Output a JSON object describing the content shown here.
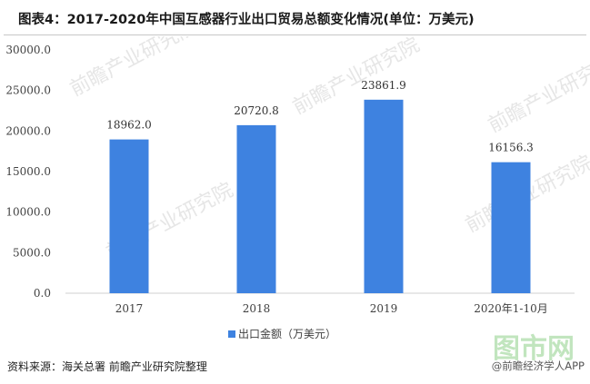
{
  "page": {
    "title": "图表4：2017-2020年中国互感器行业出口贸易总额变化情况(单位：万美元)",
    "source": "资料来源：海关总署 前瞻产业研究院整理",
    "credit": "@前瞻经济学人APP",
    "watermark": "前瞻产业研究院",
    "corner_logo": "图市网"
  },
  "colors": {
    "bar": "#3e82e0",
    "axis": "#d0d0d0",
    "text": "#404040",
    "watermark": "#e6e6e6"
  },
  "chart_data": {
    "type": "bar",
    "title": "",
    "xlabel": "",
    "ylabel": "",
    "categories": [
      "2017",
      "2018",
      "2019",
      "2020年1-10月"
    ],
    "series": [
      {
        "name": "出口金额（万美元）",
        "values": [
          18962.0,
          20720.8,
          23861.9,
          16156.3
        ]
      }
    ],
    "data_labels": [
      "18962.0",
      "20720.8",
      "23861.9",
      "16156.3"
    ],
    "yticks": [
      "0.0",
      "5000.0",
      "10000.0",
      "15000.0",
      "20000.0",
      "25000.0",
      "30000.0"
    ],
    "ylim": [
      0,
      30000
    ],
    "grid": false,
    "legend": "bottom-center"
  }
}
